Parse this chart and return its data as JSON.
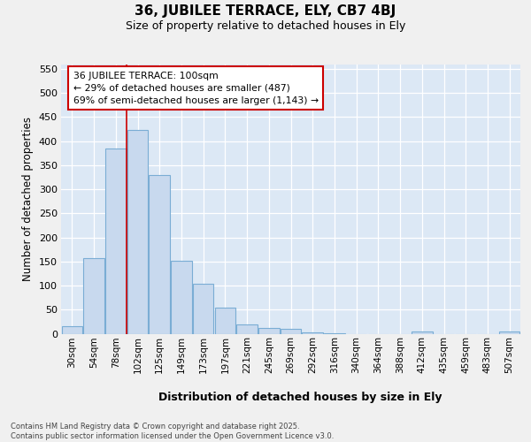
{
  "title_line1": "36, JUBILEE TERRACE, ELY, CB7 4BJ",
  "title_line2": "Size of property relative to detached houses in Ely",
  "xlabel": "Distribution of detached houses by size in Ely",
  "ylabel": "Number of detached properties",
  "bin_labels": [
    "30sqm",
    "54sqm",
    "78sqm",
    "102sqm",
    "125sqm",
    "149sqm",
    "173sqm",
    "197sqm",
    "221sqm",
    "245sqm",
    "269sqm",
    "292sqm",
    "316sqm",
    "340sqm",
    "364sqm",
    "388sqm",
    "412sqm",
    "435sqm",
    "459sqm",
    "483sqm",
    "507sqm"
  ],
  "bar_values": [
    15,
    157,
    385,
    424,
    329,
    152,
    103,
    55,
    19,
    12,
    10,
    3,
    1,
    0,
    0,
    0,
    5,
    0,
    0,
    0,
    4
  ],
  "bar_color": "#c8d9ee",
  "bar_edge_color": "#7aadd4",
  "vline_bin_index": 3,
  "vline_color": "#cc0000",
  "annotation_text": "36 JUBILEE TERRACE: 100sqm\n← 29% of detached houses are smaller (487)\n69% of semi-detached houses are larger (1,143) →",
  "annotation_box_color": "#ffffff",
  "annotation_box_edge_color": "#cc0000",
  "ylim": [
    0,
    560
  ],
  "yticks": [
    0,
    50,
    100,
    150,
    200,
    250,
    300,
    350,
    400,
    450,
    500,
    550
  ],
  "bg_color": "#dce8f5",
  "grid_color": "#ffffff",
  "fig_bg_color": "#f0f0f0",
  "footer_text": "Contains HM Land Registry data © Crown copyright and database right 2025.\nContains public sector information licensed under the Open Government Licence v3.0."
}
